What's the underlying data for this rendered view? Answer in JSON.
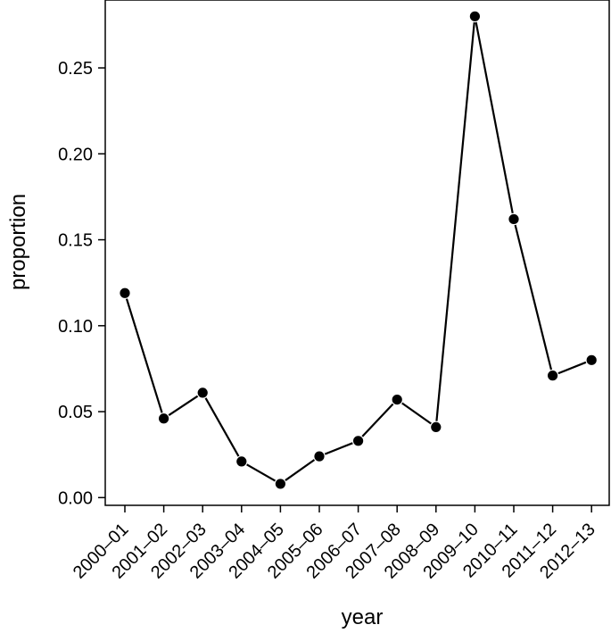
{
  "chart_data": {
    "type": "line",
    "xlabel": "year",
    "ylabel": "proportion",
    "categories": [
      "2000–01",
      "2001–02",
      "2002–03",
      "2003–04",
      "2004–05",
      "2005–06",
      "2006–07",
      "2007–08",
      "2008–09",
      "2009–10",
      "2010–11",
      "2011–12",
      "2012–13"
    ],
    "series": [
      {
        "values": [
          0.119,
          0.046,
          0.061,
          0.021,
          0.008,
          0.024,
          0.033,
          0.057,
          0.041,
          0.28,
          0.162,
          0.071,
          0.08
        ]
      }
    ],
    "y_ticks": [
      0.0,
      0.05,
      0.1,
      0.15,
      0.2,
      0.25
    ],
    "y_tick_labels": [
      "0.00",
      "0.05",
      "0.10",
      "0.15",
      "0.20",
      "0.25"
    ],
    "ylim": [
      -0.0045,
      0.2895
    ],
    "grid": false,
    "colors": {
      "line": "#000000",
      "point": "#000000",
      "frame": "#000000",
      "background": "#ffffff"
    }
  }
}
